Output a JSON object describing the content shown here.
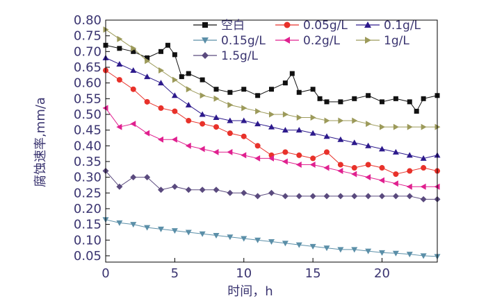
{
  "chart_data": {
    "type": "line",
    "xlabel": "时间，h",
    "ylabel": "腐蚀速率,mm/a",
    "xlim": [
      0,
      24
    ],
    "ylim": [
      0.03,
      0.8
    ],
    "xticks": [
      0,
      5,
      10,
      15,
      20
    ],
    "yticks": [
      0.05,
      0.1,
      0.15,
      0.2,
      0.25,
      0.3,
      0.35,
      0.4,
      0.45,
      0.5,
      0.55,
      0.6,
      0.65,
      0.7,
      0.75,
      0.8
    ],
    "ytick_labels": [
      "0.05",
      "0.10",
      "0.15",
      "0.20",
      "0.25",
      "0.30",
      "0.35",
      "0.40",
      "0.45",
      "0.50",
      "0.55",
      "0.60",
      "0.65",
      "0.70",
      "0.75",
      "0.80"
    ],
    "grid": false,
    "legend_position": "top-right",
    "series": [
      {
        "name": "空白",
        "color": "#111111",
        "marker": "square",
        "x": [
          0,
          1,
          2,
          3,
          4,
          4.5,
          5,
          5.5,
          6,
          7,
          8,
          9,
          10,
          11,
          12,
          13,
          13.5,
          14,
          15,
          15.5,
          16,
          17,
          18,
          19,
          20,
          21,
          22,
          22.5,
          23,
          24
        ],
        "y": [
          0.72,
          0.71,
          0.7,
          0.68,
          0.7,
          0.72,
          0.69,
          0.62,
          0.63,
          0.61,
          0.58,
          0.57,
          0.58,
          0.56,
          0.58,
          0.6,
          0.63,
          0.57,
          0.58,
          0.55,
          0.54,
          0.54,
          0.55,
          0.56,
          0.54,
          0.55,
          0.54,
          0.51,
          0.55,
          0.56
        ]
      },
      {
        "name": "0.05g/L",
        "color": "#e8312a",
        "marker": "circle",
        "x": [
          0,
          1,
          2,
          3,
          4,
          5,
          6,
          7,
          8,
          9,
          10,
          11,
          12,
          13,
          14,
          15,
          16,
          17,
          18,
          19,
          20,
          21,
          22,
          23,
          24
        ],
        "y": [
          0.64,
          0.61,
          0.58,
          0.54,
          0.52,
          0.51,
          0.48,
          0.47,
          0.46,
          0.44,
          0.43,
          0.4,
          0.37,
          0.38,
          0.37,
          0.36,
          0.38,
          0.34,
          0.33,
          0.34,
          0.33,
          0.31,
          0.32,
          0.33,
          0.32
        ]
      },
      {
        "name": "0.1g/L",
        "color": "#2d1a8c",
        "marker": "triangle-up",
        "x": [
          0,
          1,
          2,
          3,
          4,
          5,
          6,
          7,
          8,
          9,
          10,
          11,
          12,
          13,
          14,
          15,
          16,
          17,
          18,
          19,
          20,
          21,
          22,
          23,
          24
        ],
        "y": [
          0.68,
          0.66,
          0.64,
          0.62,
          0.6,
          0.56,
          0.53,
          0.5,
          0.49,
          0.48,
          0.48,
          0.47,
          0.46,
          0.45,
          0.45,
          0.44,
          0.43,
          0.42,
          0.41,
          0.4,
          0.39,
          0.38,
          0.37,
          0.36,
          0.37
        ]
      },
      {
        "name": "0.15g/L",
        "color": "#5b8fa8",
        "marker": "triangle-down",
        "x": [
          0,
          1,
          2,
          3,
          4,
          5,
          6,
          7,
          8,
          9,
          10,
          11,
          12,
          13,
          14,
          15,
          16,
          17,
          18,
          19,
          20,
          21,
          22,
          23,
          24
        ],
        "y": [
          0.165,
          0.155,
          0.15,
          0.14,
          0.135,
          0.13,
          0.125,
          0.12,
          0.115,
          0.11,
          0.105,
          0.1,
          0.095,
          0.09,
          0.085,
          0.08,
          0.075,
          0.07,
          0.07,
          0.065,
          0.06,
          0.058,
          0.055,
          0.05,
          0.048
        ]
      },
      {
        "name": "0.2g/L",
        "color": "#e0208f",
        "marker": "triangle-left",
        "x": [
          0,
          1,
          2,
          3,
          4,
          5,
          6,
          7,
          8,
          9,
          10,
          11,
          12,
          13,
          14,
          15,
          16,
          17,
          18,
          19,
          20,
          21,
          22,
          23,
          24
        ],
        "y": [
          0.52,
          0.46,
          0.47,
          0.44,
          0.42,
          0.42,
          0.4,
          0.39,
          0.38,
          0.38,
          0.37,
          0.36,
          0.36,
          0.35,
          0.34,
          0.34,
          0.33,
          0.32,
          0.31,
          0.3,
          0.29,
          0.28,
          0.27,
          0.27,
          0.27
        ]
      },
      {
        "name": "1g/L",
        "color": "#9c9a5a",
        "marker": "triangle-right",
        "x": [
          0,
          1,
          2,
          3,
          4,
          5,
          6,
          7,
          8,
          9,
          10,
          11,
          12,
          13,
          14,
          15,
          16,
          17,
          18,
          19,
          20,
          21,
          22,
          23,
          24
        ],
        "y": [
          0.77,
          0.74,
          0.71,
          0.67,
          0.64,
          0.61,
          0.58,
          0.56,
          0.55,
          0.53,
          0.52,
          0.51,
          0.5,
          0.5,
          0.49,
          0.49,
          0.48,
          0.48,
          0.48,
          0.47,
          0.46,
          0.46,
          0.46,
          0.46,
          0.46
        ]
      },
      {
        "name": "1.5g/L",
        "color": "#5a4a7e",
        "marker": "diamond",
        "x": [
          0,
          1,
          2,
          3,
          4,
          5,
          6,
          7,
          8,
          9,
          10,
          11,
          12,
          13,
          14,
          15,
          16,
          17,
          18,
          19,
          20,
          21,
          22,
          23,
          24
        ],
        "y": [
          0.32,
          0.27,
          0.3,
          0.3,
          0.26,
          0.27,
          0.26,
          0.26,
          0.26,
          0.25,
          0.25,
          0.24,
          0.25,
          0.24,
          0.24,
          0.24,
          0.24,
          0.24,
          0.24,
          0.24,
          0.24,
          0.24,
          0.24,
          0.23,
          0.23
        ]
      }
    ]
  }
}
